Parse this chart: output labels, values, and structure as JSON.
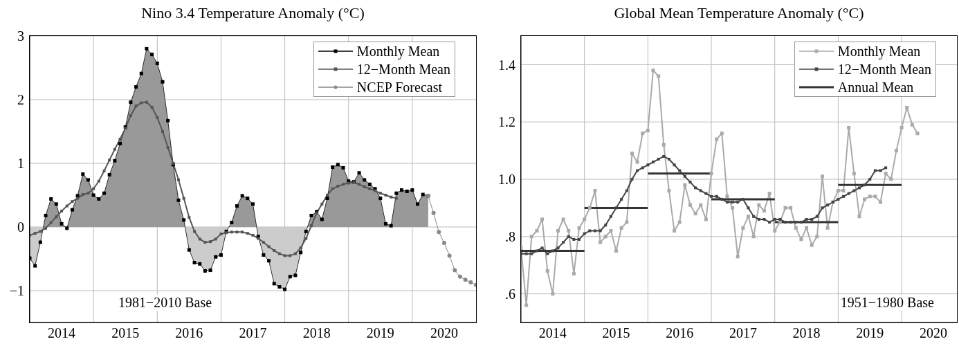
{
  "chart_data": [
    {
      "type": "line",
      "title": "Nino 3.4 Temperature Anomaly (°C)",
      "x": [
        "2014-01",
        "2014-02",
        "2014-03",
        "2014-04",
        "2014-05",
        "2014-06",
        "2014-07",
        "2014-08",
        "2014-09",
        "2014-10",
        "2014-11",
        "2014-12",
        "2015-01",
        "2015-02",
        "2015-03",
        "2015-04",
        "2015-05",
        "2015-06",
        "2015-07",
        "2015-08",
        "2015-09",
        "2015-10",
        "2015-11",
        "2015-12",
        "2016-01",
        "2016-02",
        "2016-03",
        "2016-04",
        "2016-05",
        "2016-06",
        "2016-07",
        "2016-08",
        "2016-09",
        "2016-10",
        "2016-11",
        "2016-12",
        "2017-01",
        "2017-02",
        "2017-03",
        "2017-04",
        "2017-05",
        "2017-06",
        "2017-07",
        "2017-08",
        "2017-09",
        "2017-10",
        "2017-11",
        "2017-12",
        "2018-01",
        "2018-02",
        "2018-03",
        "2018-04",
        "2018-05",
        "2018-06",
        "2018-07",
        "2018-08",
        "2018-09",
        "2018-10",
        "2018-11",
        "2018-12",
        "2019-01",
        "2019-02",
        "2019-03",
        "2019-04",
        "2019-05",
        "2019-06",
        "2019-07",
        "2019-08",
        "2019-09",
        "2019-10",
        "2019-11",
        "2019-12",
        "2020-01",
        "2020-02",
        "2020-03",
        "2020-04"
      ],
      "series": [
        {
          "name": "Monthly Mean",
          "type": "area",
          "color": "#000000",
          "marker": "square",
          "values": [
            -0.49,
            -0.61,
            -0.24,
            0.18,
            0.44,
            0.36,
            0.05,
            -0.02,
            0.27,
            0.49,
            0.83,
            0.74,
            0.5,
            0.44,
            0.53,
            0.82,
            1.04,
            1.31,
            1.57,
            1.96,
            2.2,
            2.41,
            2.8,
            2.71,
            2.57,
            2.28,
            1.67,
            0.98,
            0.42,
            0.11,
            -0.36,
            -0.56,
            -0.58,
            -0.69,
            -0.68,
            -0.47,
            -0.44,
            -0.07,
            0.07,
            0.33,
            0.49,
            0.45,
            0.36,
            -0.15,
            -0.44,
            -0.53,
            -0.89,
            -0.94,
            -0.98,
            -0.78,
            -0.76,
            -0.4,
            -0.07,
            0.18,
            0.24,
            0.12,
            0.45,
            0.94,
            0.98,
            0.93,
            0.72,
            0.71,
            0.85,
            0.74,
            0.67,
            0.6,
            0.45,
            0.05,
            0.02,
            0.53,
            0.58,
            0.56,
            0.58,
            0.36,
            0.51,
            0.49
          ]
        },
        {
          "name": "12−Month Mean",
          "color": "#555555",
          "marker": "square",
          "values": [
            -0.13,
            -0.1,
            -0.07,
            -0.02,
            0.07,
            0.16,
            0.25,
            0.33,
            0.4,
            0.45,
            0.51,
            0.53,
            0.6,
            0.72,
            0.88,
            1.05,
            1.22,
            1.38,
            1.55,
            1.75,
            1.9,
            1.95,
            1.96,
            1.88,
            1.72,
            1.5,
            1.25,
            1.0,
            0.74,
            0.45,
            0.15,
            -0.07,
            -0.19,
            -0.24,
            -0.23,
            -0.19,
            -0.11,
            -0.09,
            -0.08,
            -0.08,
            -0.08,
            -0.1,
            -0.13,
            -0.18,
            -0.24,
            -0.31,
            -0.37,
            -0.42,
            -0.45,
            -0.45,
            -0.42,
            -0.33,
            -0.18,
            0.02,
            0.22,
            0.36,
            0.5,
            0.6,
            0.64,
            0.67,
            0.69,
            0.7,
            0.67,
            0.63,
            0.6,
            0.57,
            0.53,
            0.5,
            0.47,
            0.45,
            null,
            null,
            null,
            null,
            null,
            null
          ]
        },
        {
          "name": "NCEP Forecast",
          "color": "#888888",
          "marker": "circle",
          "x": [
            "2020-04",
            "2020-05",
            "2020-06",
            "2020-07",
            "2020-08",
            "2020-09",
            "2020-10",
            "2020-11",
            "2020-12",
            "2021-01"
          ],
          "values": [
            0.49,
            0.22,
            -0.08,
            -0.25,
            -0.45,
            -0.68,
            -0.78,
            -0.83,
            -0.87,
            -0.91
          ]
        }
      ],
      "xlim": [
        "2014",
        "2021"
      ],
      "xticks": [
        {
          "value": "2014-07",
          "label": "2014"
        },
        {
          "value": "2015",
          "label": null
        },
        {
          "value": "2015-07",
          "label": "2015"
        },
        {
          "value": "2016",
          "label": null
        },
        {
          "value": "2016-07",
          "label": "2016"
        },
        {
          "value": "2017",
          "label": null
        },
        {
          "value": "2017-07",
          "label": "2017"
        },
        {
          "value": "2018",
          "label": null
        },
        {
          "value": "2018-07",
          "label": "2018"
        },
        {
          "value": "2019",
          "label": null
        },
        {
          "value": "2019-07",
          "label": "2019"
        },
        {
          "value": "2020",
          "label": null
        },
        {
          "value": "2020-07",
          "label": "2020"
        }
      ],
      "ylim": [
        -1.5,
        3
      ],
      "yticks": [
        {
          "value": -1,
          "label": "−1"
        },
        0,
        1,
        2,
        3
      ],
      "grid": true,
      "legend": "top right",
      "annotations": [
        "1981−2010 Base"
      ]
    },
    {
      "type": "line",
      "title": "Global Mean Temperature Anomaly (°C)",
      "x": [
        "2014-01",
        "2014-02",
        "2014-03",
        "2014-04",
        "2014-05",
        "2014-06",
        "2014-07",
        "2014-08",
        "2014-09",
        "2014-10",
        "2014-11",
        "2014-12",
        "2015-01",
        "2015-02",
        "2015-03",
        "2015-04",
        "2015-05",
        "2015-06",
        "2015-07",
        "2015-08",
        "2015-09",
        "2015-10",
        "2015-11",
        "2015-12",
        "2016-01",
        "2016-02",
        "2016-03",
        "2016-04",
        "2016-05",
        "2016-06",
        "2016-07",
        "2016-08",
        "2016-09",
        "2016-10",
        "2016-11",
        "2016-12",
        "2017-01",
        "2017-02",
        "2017-03",
        "2017-04",
        "2017-05",
        "2017-06",
        "2017-07",
        "2017-08",
        "2017-09",
        "2017-10",
        "2017-11",
        "2017-12",
        "2018-01",
        "2018-02",
        "2018-03",
        "2018-04",
        "2018-05",
        "2018-06",
        "2018-07",
        "2018-08",
        "2018-09",
        "2018-10",
        "2018-11",
        "2018-12",
        "2019-01",
        "2019-02",
        "2019-03",
        "2019-04",
        "2019-05",
        "2019-06",
        "2019-07",
        "2019-08",
        "2019-09",
        "2019-10",
        "2019-11",
        "2019-12",
        "2020-01",
        "2020-02",
        "2020-03",
        "2020-04"
      ],
      "series": [
        {
          "name": "Monthly Mean",
          "color": "#aaaaaa",
          "marker": "square",
          "values": [
            0.76,
            0.56,
            0.8,
            0.82,
            0.86,
            0.68,
            0.6,
            0.82,
            0.86,
            0.82,
            0.67,
            0.83,
            0.86,
            0.9,
            0.96,
            0.78,
            0.8,
            0.82,
            0.75,
            0.83,
            0.85,
            1.09,
            1.06,
            1.16,
            1.17,
            1.38,
            1.36,
            1.12,
            0.96,
            0.82,
            0.85,
            0.98,
            0.91,
            0.88,
            0.91,
            0.86,
            1.02,
            1.14,
            1.16,
            0.94,
            0.9,
            0.73,
            0.83,
            0.87,
            0.8,
            0.91,
            0.89,
            0.95,
            0.82,
            0.85,
            0.9,
            0.9,
            0.83,
            0.79,
            0.83,
            0.77,
            0.8,
            1.01,
            0.83,
            0.92,
            0.96,
            0.96,
            1.18,
            1.02,
            0.87,
            0.93,
            0.94,
            0.94,
            0.92,
            1.02,
            1.0,
            1.1,
            1.18,
            1.25,
            1.19,
            1.16
          ]
        },
        {
          "name": "12−Month Mean",
          "color": "#444444",
          "marker": "square",
          "values": [
            0.74,
            0.74,
            0.74,
            0.75,
            0.76,
            0.74,
            0.75,
            0.76,
            0.78,
            0.8,
            0.79,
            0.79,
            0.81,
            0.82,
            0.82,
            0.82,
            0.84,
            0.87,
            0.9,
            0.93,
            0.96,
            1.0,
            1.03,
            1.04,
            1.05,
            1.06,
            1.07,
            1.08,
            1.07,
            1.05,
            1.03,
            1.01,
            0.99,
            0.97,
            0.96,
            0.95,
            0.94,
            0.94,
            0.93,
            0.92,
            0.92,
            0.92,
            0.93,
            0.9,
            0.87,
            0.86,
            0.86,
            0.85,
            0.86,
            0.86,
            0.85,
            0.85,
            0.85,
            0.85,
            0.86,
            0.86,
            0.87,
            0.9,
            0.91,
            0.92,
            0.93,
            0.94,
            0.95,
            0.96,
            0.97,
            0.98,
            1.0,
            1.03,
            1.03,
            1.04,
            null,
            null,
            null,
            null,
            null,
            null
          ]
        },
        {
          "name": "Annual Mean",
          "color": "#333333",
          "marker": "none",
          "x": [
            "2014",
            "2015",
            "2015",
            "2016",
            "2016",
            "2017",
            "2017",
            "2018",
            "2018",
            "2019",
            "2019",
            "2020"
          ],
          "values": [
            0.75,
            0.75,
            0.9,
            0.9,
            1.02,
            1.02,
            0.93,
            0.93,
            0.85,
            0.85,
            0.98,
            0.98
          ]
        }
      ],
      "xlim": [
        "2014",
        "2020-11-15"
      ],
      "xticks": [
        {
          "value": "2014-07",
          "label": "2014"
        },
        {
          "value": "2015",
          "label": null
        },
        {
          "value": "2015-07",
          "label": "2015"
        },
        {
          "value": "2016",
          "label": null
        },
        {
          "value": "2016-07",
          "label": "2016"
        },
        {
          "value": "2017",
          "label": null
        },
        {
          "value": "2017-07",
          "label": "2017"
        },
        {
          "value": "2018",
          "label": null
        },
        {
          "value": "2018-07",
          "label": "2018"
        },
        {
          "value": "2019",
          "label": null
        },
        {
          "value": "2019-07",
          "label": "2019"
        },
        {
          "value": "2020",
          "label": null
        },
        {
          "value": "2020-07",
          "label": "2020"
        }
      ],
      "ylim": [
        0.5,
        1.5
      ],
      "yticks": [
        {
          "value": 0.6,
          "label": ".6"
        },
        {
          "value": 0.8,
          "label": ".8"
        },
        {
          "value": 1,
          "label": "1.0"
        },
        {
          "value": 1.2,
          "label": "1.2"
        },
        {
          "value": 1.4,
          "label": "1.4"
        }
      ],
      "grid": true,
      "legend": "top right",
      "annotations": [
        "1951−1980 Base"
      ]
    }
  ]
}
